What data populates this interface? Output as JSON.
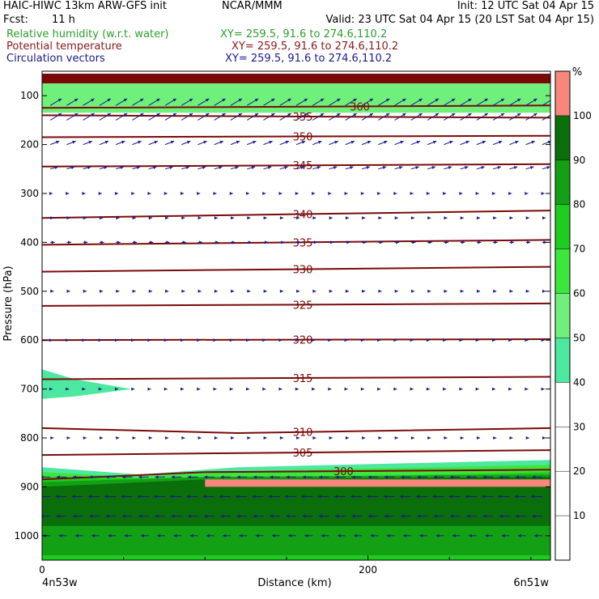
{
  "header": {
    "model": "HAIC-HIWC 13km ARW-GFS init",
    "org": "NCAR/MMM",
    "init": "Init: 12 UTC Sat 04 Apr 15",
    "fcst_label": "Fcst:",
    "fcst_value": "11 h",
    "valid": "Valid: 23 UTC Sat 04 Apr 15 (20 LST Sat 04 Apr 15)",
    "fields": [
      {
        "name": "Relative humidity (w.r.t. water)",
        "xy": "XY= 259.5, 91.6 to 274.6,110.2",
        "color": "#2ca02c"
      },
      {
        "name": "Potential temperature",
        "xy": "XY= 259.5, 91.6 to 274.6,110.2",
        "color": "#8b1a1a"
      },
      {
        "name": "Circulation vectors",
        "xy": "XY= 259.5, 91.6 to 274.6,110.2",
        "color": "#1a1a8b"
      }
    ]
  },
  "chart_data": {
    "type": "heatmap",
    "xlabel": "Distance (km)",
    "ylabel": "Pressure (hPa)",
    "xlim": [
      0,
      312
    ],
    "ylim": [
      1050,
      50
    ],
    "x_ticks": [
      {
        "v": 0,
        "label": "0"
      },
      {
        "v": 200,
        "label": "200"
      }
    ],
    "x_end_labels": [
      "4n53w",
      "6n51w"
    ],
    "y_ticks": [
      {
        "v": 100,
        "label": "100"
      },
      {
        "v": 200,
        "label": "200"
      },
      {
        "v": 300,
        "label": "300"
      },
      {
        "v": 400,
        "label": "400"
      },
      {
        "v": 500,
        "label": "500"
      },
      {
        "v": 600,
        "label": "600"
      },
      {
        "v": 700,
        "label": "700"
      },
      {
        "v": 800,
        "label": "800"
      },
      {
        "v": 900,
        "label": "900"
      },
      {
        "v": 1000,
        "label": "1000"
      }
    ],
    "colorbar": {
      "unit": "%",
      "ticks": [
        "10",
        "20",
        "30",
        "40",
        "50",
        "60",
        "70",
        "80",
        "90",
        "100"
      ],
      "bins": [
        {
          "range": [
            100,
            110
          ],
          "color": "#f7877d"
        },
        {
          "range": [
            90,
            100
          ],
          "color": "#0a6e0a"
        },
        {
          "range": [
            80,
            90
          ],
          "color": "#14a014"
        },
        {
          "range": [
            70,
            80
          ],
          "color": "#1ecc1e"
        },
        {
          "range": [
            60,
            70
          ],
          "color": "#3ce63c"
        },
        {
          "range": [
            50,
            60
          ],
          "color": "#6ff07a"
        },
        {
          "range": [
            40,
            50
          ],
          "color": "#4de8a0"
        }
      ]
    },
    "rh_regions": [
      {
        "value": 100,
        "points": [
          [
            0,
            55
          ],
          [
            312,
            55
          ],
          [
            312,
            75
          ],
          [
            0,
            75
          ]
        ],
        "color": "#7a0a0a"
      },
      {
        "value": 60,
        "points": [
          [
            0,
            75
          ],
          [
            312,
            75
          ],
          [
            312,
            135
          ],
          [
            0,
            135
          ]
        ],
        "color": "#6ff07a"
      },
      {
        "value": 50,
        "points": [
          [
            0,
            660
          ],
          [
            20,
            680
          ],
          [
            55,
            700
          ],
          [
            20,
            715
          ],
          [
            0,
            720
          ]
        ],
        "color": "#4de8a0"
      },
      {
        "value": 50,
        "points": [
          [
            0,
            860
          ],
          [
            60,
            875
          ],
          [
            120,
            860
          ],
          [
            312,
            845
          ],
          [
            312,
            1050
          ],
          [
            0,
            1050
          ]
        ],
        "color": "#4de8a0"
      },
      {
        "value": 60,
        "points": [
          [
            0,
            870
          ],
          [
            60,
            880
          ],
          [
            120,
            868
          ],
          [
            312,
            855
          ],
          [
            312,
            1050
          ],
          [
            0,
            1050
          ]
        ],
        "color": "#3ce63c"
      },
      {
        "value": 70,
        "points": [
          [
            0,
            880
          ],
          [
            100,
            885
          ],
          [
            312,
            870
          ],
          [
            312,
            1050
          ],
          [
            0,
            1050
          ]
        ],
        "color": "#1ecc1e"
      },
      {
        "value": 80,
        "points": [
          [
            0,
            890
          ],
          [
            100,
            880
          ],
          [
            312,
            875
          ],
          [
            312,
            1040
          ],
          [
            0,
            1040
          ]
        ],
        "color": "#14a014"
      },
      {
        "value": 90,
        "points": [
          [
            0,
            900
          ],
          [
            100,
            885
          ],
          [
            312,
            880
          ],
          [
            312,
            980
          ],
          [
            0,
            980
          ]
        ],
        "color": "#0a6e0a"
      },
      {
        "value": 100,
        "points": [
          [
            100,
            885
          ],
          [
            312,
            885
          ],
          [
            312,
            900
          ],
          [
            100,
            900
          ]
        ],
        "color": "#f7877d"
      }
    ],
    "theta_contours": [
      {
        "label": "360",
        "label_at": 195,
        "points": [
          [
            0,
            125
          ],
          [
            312,
            120
          ]
        ]
      },
      {
        "label": "355",
        "label_at": 160,
        "points": [
          [
            0,
            140
          ],
          [
            312,
            145
          ]
        ]
      },
      {
        "label": "350",
        "label_at": 160,
        "points": [
          [
            0,
            185
          ],
          [
            312,
            182
          ]
        ]
      },
      {
        "label": "345",
        "label_at": 160,
        "points": [
          [
            0,
            245
          ],
          [
            312,
            240
          ]
        ]
      },
      {
        "label": "340",
        "label_at": 160,
        "points": [
          [
            0,
            350
          ],
          [
            312,
            335
          ]
        ]
      },
      {
        "label": "335",
        "label_at": 160,
        "points": [
          [
            0,
            405
          ],
          [
            312,
            395
          ]
        ]
      },
      {
        "label": "330",
        "label_at": 160,
        "points": [
          [
            0,
            460
          ],
          [
            312,
            450
          ]
        ]
      },
      {
        "label": "325",
        "label_at": 160,
        "points": [
          [
            0,
            530
          ],
          [
            312,
            525
          ]
        ]
      },
      {
        "label": "320",
        "label_at": 160,
        "points": [
          [
            0,
            600
          ],
          [
            312,
            598
          ]
        ]
      },
      {
        "label": "315",
        "label_at": 160,
        "points": [
          [
            0,
            680
          ],
          [
            312,
            675
          ]
        ]
      },
      {
        "label": "310",
        "label_at": 160,
        "points": [
          [
            0,
            780
          ],
          [
            120,
            790
          ],
          [
            312,
            780
          ]
        ]
      },
      {
        "label": "305",
        "label_at": 160,
        "points": [
          [
            0,
            835
          ],
          [
            312,
            825
          ]
        ]
      },
      {
        "label": "300",
        "label_at": 185,
        "points": [
          [
            0,
            885
          ],
          [
            100,
            870
          ],
          [
            312,
            865
          ]
        ]
      }
    ],
    "vector_color": "#1a1a8b",
    "vector_layers": [
      {
        "p": 120,
        "u": 1.0,
        "w": 0.6
      },
      {
        "p": 150,
        "u": 1.0,
        "w": 0.6
      },
      {
        "p": 200,
        "u": 0.8,
        "w": 0.3
      },
      {
        "p": 250,
        "u": 0.7,
        "w": 0.2
      },
      {
        "p": 300,
        "u": 0.2,
        "w": 0.0
      },
      {
        "p": 350,
        "u": 0.3,
        "w": 0.0
      },
      {
        "p": 400,
        "u": 0.4,
        "w": 0.0
      },
      {
        "p": 500,
        "u": 0.3,
        "w": 0.0
      },
      {
        "p": 600,
        "u": 0.2,
        "w": 0.0
      },
      {
        "p": 700,
        "u": 0.2,
        "w": 0.0
      },
      {
        "p": 800,
        "u": 0.3,
        "w": 0.0
      },
      {
        "p": 880,
        "u": -0.9,
        "w": 0.0
      },
      {
        "p": 920,
        "u": -1.0,
        "w": 0.0
      },
      {
        "p": 960,
        "u": -0.9,
        "w": 0.0
      },
      {
        "p": 1000,
        "u": -0.7,
        "w": 0.0
      }
    ]
  }
}
